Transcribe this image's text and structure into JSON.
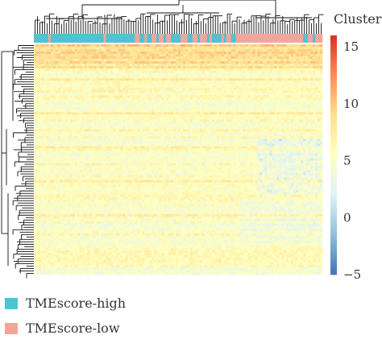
{
  "chart_data": {
    "type": "heatmap",
    "title": "",
    "colorbar": {
      "title": "Cluster",
      "range": [
        -5,
        16
      ],
      "ticks": [
        15,
        10,
        5,
        0,
        -5
      ],
      "tick_labels": [
        "15",
        "10",
        "5",
        "0",
        "−5"
      ],
      "colors": [
        "#4575b4",
        "#91bfdb",
        "#e0f3f8",
        "#ffffbf",
        "#fee090",
        "#fc8d59",
        "#d73027"
      ]
    },
    "annotation": {
      "groups": [
        "TMEscore-high",
        "TMEscore-low"
      ],
      "colors": {
        "TMEscore-high": "#4fc3d2",
        "TMEscore-low": "#f4a59a"
      }
    },
    "dendrograms": {
      "column": true,
      "row": true
    },
    "legend": {
      "placement": "bottom-left",
      "entries": [
        {
          "label": "TMEscore-high",
          "color": "#4fc3d2"
        },
        {
          "label": "TMEscore-low",
          "color": "#f4a59a"
        }
      ]
    }
  }
}
